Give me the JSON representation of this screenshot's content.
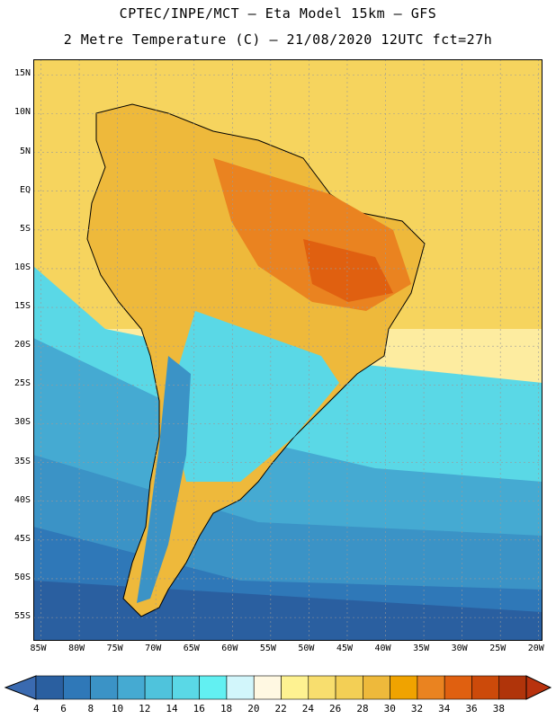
{
  "header": {
    "title_line1": "CPTEC/INPE/MCT –  Eta Model 15km – GFS",
    "title_line2": "2 Metre Temperature (C) – 21/08/2020 12UTC fct=27h"
  },
  "map": {
    "lat_labels": [
      "15N",
      "10N",
      "5N",
      "EQ",
      "5S",
      "10S",
      "15S",
      "20S",
      "25S",
      "30S",
      "35S",
      "40S",
      "45S",
      "50S",
      "55S"
    ],
    "lon_labels": [
      "85W",
      "80W",
      "75W",
      "70W",
      "65W",
      "60W",
      "55W",
      "50W",
      "45W",
      "40W",
      "35W",
      "30W",
      "25W",
      "20W"
    ],
    "lat_values": [
      15,
      10,
      5,
      0,
      -5,
      -10,
      -15,
      -20,
      -25,
      -30,
      -35,
      -40,
      -45,
      -50,
      -55
    ],
    "lon_values": [
      -85,
      -80,
      -75,
      -70,
      -65,
      -60,
      -55,
      -50,
      -45,
      -40,
      -35,
      -30,
      -25,
      -20
    ]
  },
  "colorbar": {
    "labels": [
      "4",
      "6",
      "8",
      "10",
      "12",
      "14",
      "16",
      "18",
      "20",
      "22",
      "24",
      "26",
      "28",
      "30",
      "32",
      "34",
      "36",
      "38"
    ],
    "values": [
      4,
      6,
      8,
      10,
      12,
      14,
      16,
      18,
      20,
      22,
      24,
      26,
      28,
      30,
      32,
      34,
      36,
      38
    ],
    "colors": [
      "#2a5fa0",
      "#2f78b8",
      "#3b93c6",
      "#45aad2",
      "#4fc3dc",
      "#5ad8e6",
      "#62f0f2",
      "#d2f6fb",
      "#fff8e2",
      "#fef291",
      "#f8de6e",
      "#f3cf55",
      "#eeb93b",
      "#f0a300",
      "#ea8320",
      "#e06010",
      "#cc4a0a",
      "#b0340a"
    ],
    "low_color": "#3a6ab0",
    "high_color": "#b8320e"
  }
}
